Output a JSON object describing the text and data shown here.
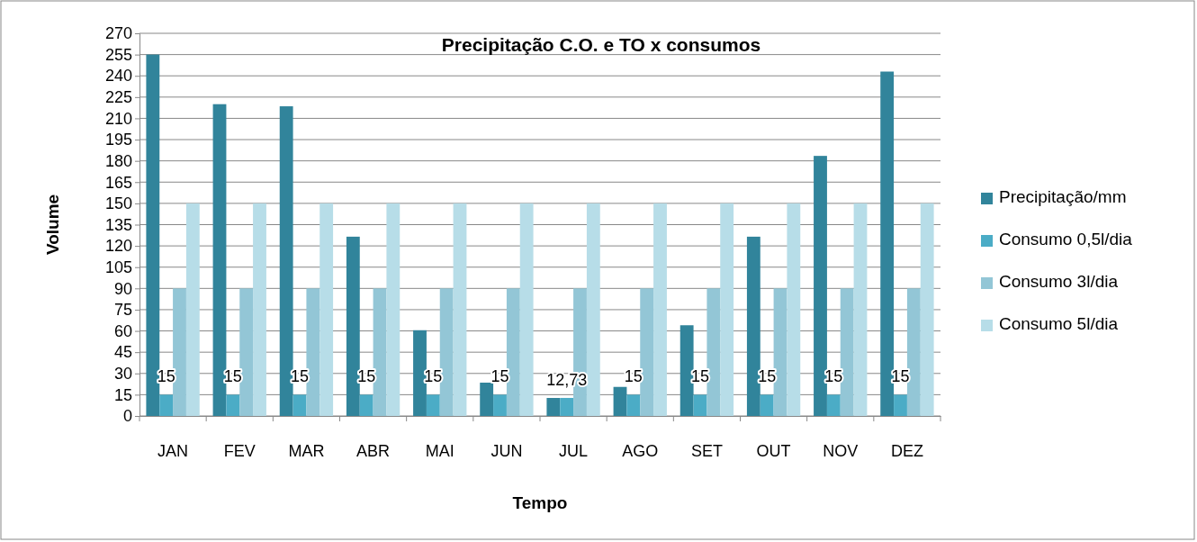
{
  "chart_data": {
    "type": "bar",
    "title": "Precipitação C.O. e TO x consumos",
    "xlabel": "Tempo",
    "ylabel": "Volume",
    "categories": [
      "JAN",
      "FEV",
      "MAR",
      "ABR",
      "MAI",
      "JUN",
      "JUL",
      "AGO",
      "SET",
      "OUT",
      "NOV",
      "DEZ"
    ],
    "series": [
      {
        "name": "Precipitação/mm",
        "color": "#31849b",
        "values": [
          255,
          220,
          218.5,
          126.5,
          60.5,
          23.5,
          12.7,
          20.5,
          64,
          126.5,
          183.5,
          243
        ]
      },
      {
        "name": "Consumo 0,5l/dia",
        "color": "#4bacc6",
        "values": [
          15,
          15,
          15,
          15,
          15,
          15,
          12.73,
          15,
          15,
          15,
          15,
          15
        ],
        "value_labels": [
          "15",
          "15",
          "15",
          "15",
          "15",
          "15",
          "12,73",
          "15",
          "15",
          "15",
          "15",
          "15"
        ]
      },
      {
        "name": "Consumo 3l/dia",
        "color": "#93c6d6",
        "values": [
          90,
          90,
          90,
          90,
          90,
          90,
          90,
          90,
          90,
          90,
          90,
          90
        ]
      },
      {
        "name": "Consumo 5l/dia",
        "color": "#b7dde8",
        "values": [
          150,
          150,
          150,
          150,
          150,
          150,
          150,
          150,
          150,
          150,
          150,
          150
        ]
      }
    ],
    "ylim": [
      0,
      270
    ],
    "yticks": [
      0,
      15,
      30,
      45,
      60,
      75,
      90,
      105,
      120,
      135,
      150,
      165,
      180,
      195,
      210,
      225,
      240,
      255,
      270
    ],
    "grid": "y",
    "legend": "right"
  }
}
